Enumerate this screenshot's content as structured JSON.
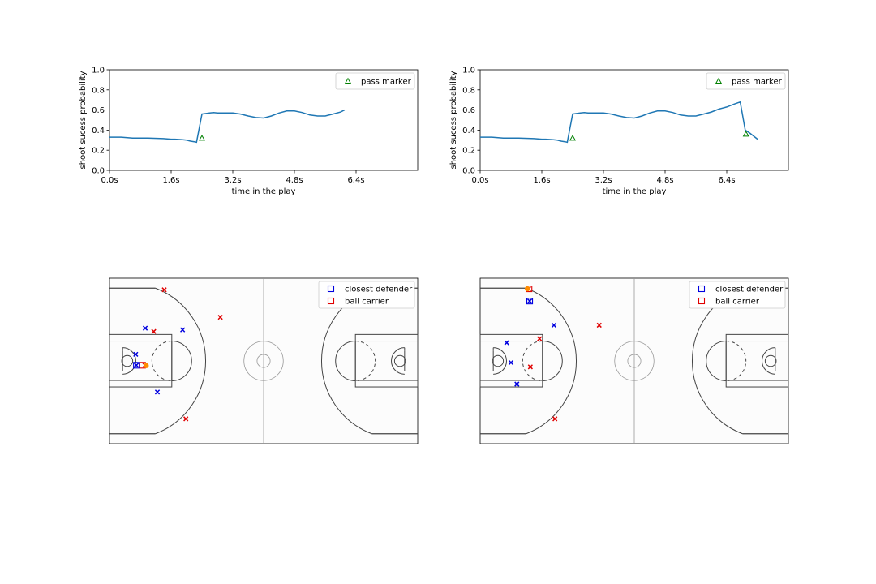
{
  "chart_data": [
    {
      "type": "line",
      "panel": "top-left",
      "xlabel": "time in the play",
      "ylabel": "shoot sucess probability",
      "xlim": [
        0,
        8.0
      ],
      "ylim": [
        0,
        1.0
      ],
      "xticks": [
        0,
        1.6,
        3.2,
        4.8,
        6.4
      ],
      "xtick_labels": [
        "0.0s",
        "1.6s",
        "3.2s",
        "4.8s",
        "6.4s"
      ],
      "yticks": [
        0,
        0.2,
        0.4,
        0.6,
        0.8,
        1.0
      ],
      "ytick_labels": [
        "0.0",
        "0.2",
        "0.4",
        "0.6",
        "0.8",
        "1.0"
      ],
      "line_color": "#1f77b4",
      "x": [
        0,
        0.3,
        0.6,
        0.7,
        1.0,
        1.4,
        1.6,
        1.7,
        1.9,
        2.0,
        2.1,
        2.2,
        2.26,
        2.4,
        2.6,
        2.7,
        2.8,
        3.0,
        3.2,
        3.4,
        3.6,
        3.8,
        4.0,
        4.2,
        4.4,
        4.6,
        4.8,
        5.0,
        5.2,
        5.4,
        5.6,
        5.8,
        6.0,
        6.1
      ],
      "y": [
        0.33,
        0.33,
        0.32,
        0.32,
        0.32,
        0.315,
        0.31,
        0.31,
        0.305,
        0.3,
        0.29,
        0.285,
        0.28,
        0.56,
        0.57,
        0.575,
        0.57,
        0.57,
        0.57,
        0.56,
        0.54,
        0.525,
        0.52,
        0.54,
        0.57,
        0.59,
        0.59,
        0.575,
        0.55,
        0.54,
        0.54,
        0.56,
        0.58,
        0.6
      ],
      "markers": [
        {
          "label": "pass marker",
          "x": 2.4,
          "y": 0.32,
          "color": "#008000",
          "shape": "triangle"
        }
      ],
      "legend": {
        "entries": [
          "pass marker"
        ],
        "placement": "upper right"
      }
    },
    {
      "type": "line",
      "panel": "top-right",
      "xlabel": "time in the play",
      "ylabel": "shoot sucess probability",
      "xlim": [
        0,
        8.0
      ],
      "ylim": [
        0,
        1.0
      ],
      "xticks": [
        0,
        1.6,
        3.2,
        4.8,
        6.4
      ],
      "xtick_labels": [
        "0.0s",
        "1.6s",
        "3.2s",
        "4.8s",
        "6.4s"
      ],
      "yticks": [
        0,
        0.2,
        0.4,
        0.6,
        0.8,
        1.0
      ],
      "ytick_labels": [
        "0.0",
        "0.2",
        "0.4",
        "0.6",
        "0.8",
        "1.0"
      ],
      "line_color": "#1f77b4",
      "x": [
        0,
        0.3,
        0.6,
        0.7,
        1.0,
        1.4,
        1.6,
        1.7,
        1.9,
        2.0,
        2.1,
        2.2,
        2.26,
        2.4,
        2.6,
        2.7,
        2.8,
        3.0,
        3.2,
        3.4,
        3.6,
        3.8,
        4.0,
        4.2,
        4.4,
        4.6,
        4.8,
        5.0,
        5.2,
        5.4,
        5.6,
        5.8,
        6.0,
        6.2,
        6.4,
        6.6,
        6.75,
        6.88,
        7.0,
        7.2
      ],
      "y": [
        0.33,
        0.33,
        0.32,
        0.32,
        0.32,
        0.315,
        0.31,
        0.31,
        0.305,
        0.3,
        0.29,
        0.285,
        0.28,
        0.56,
        0.57,
        0.575,
        0.57,
        0.57,
        0.57,
        0.56,
        0.54,
        0.525,
        0.52,
        0.54,
        0.57,
        0.59,
        0.59,
        0.575,
        0.55,
        0.54,
        0.54,
        0.56,
        0.58,
        0.61,
        0.63,
        0.66,
        0.68,
        0.4,
        0.37,
        0.31
      ],
      "markers": [
        {
          "label": "pass marker",
          "x": 2.4,
          "y": 0.32,
          "color": "#008000",
          "shape": "triangle"
        },
        {
          "label": "pass marker",
          "x": 6.9,
          "y": 0.36,
          "color": "#008000",
          "shape": "triangle"
        }
      ],
      "legend": {
        "entries": [
          "pass marker"
        ],
        "placement": "upper right"
      }
    },
    {
      "type": "scatter",
      "panel": "bottom-left",
      "background": "basketball court",
      "xlim": [
        0,
        94
      ],
      "ylim": [
        0,
        50
      ],
      "series": [
        {
          "name": "offense",
          "color": "#e00000",
          "marker": "x",
          "points": [
            [
              16.7,
              46.5
            ],
            [
              33.8,
              38.2
            ],
            [
              13.5,
              33.9
            ],
            [
              23.3,
              7.5
            ],
            [
              10.8,
              23.7
            ]
          ]
        },
        {
          "name": "defense",
          "color": "#0000e0",
          "marker": "x",
          "points": [
            [
              10.9,
              34.9
            ],
            [
              22.3,
              34.4
            ],
            [
              8.0,
              27.0
            ],
            [
              8.2,
              23.7
            ],
            [
              14.6,
              15.6
            ]
          ]
        },
        {
          "name": "closest defender",
          "color": "#0000e0",
          "marker": "square",
          "points": [
            [
              8.2,
              23.7
            ]
          ]
        },
        {
          "name": "ball carrier",
          "color": "#e00000",
          "marker": "square",
          "points": [
            [
              10.1,
              23.7
            ]
          ]
        },
        {
          "name": "ball",
          "color": "#ff8c00",
          "marker": "dot",
          "points": [
            [
              11.2,
              23.6
            ]
          ]
        }
      ],
      "legend": {
        "entries": [
          "closest defender",
          "ball carrier"
        ],
        "placement": "upper right"
      }
    },
    {
      "type": "scatter",
      "panel": "bottom-right",
      "background": "basketball court",
      "xlim": [
        0,
        94
      ],
      "ylim": [
        0,
        50
      ],
      "series": [
        {
          "name": "offense",
          "color": "#e00000",
          "marker": "x",
          "points": [
            [
              36.3,
              35.8
            ],
            [
              18.1,
              31.7
            ],
            [
              15.3,
              23.2
            ],
            [
              22.8,
              7.5
            ],
            [
              14.8,
              46.8
            ]
          ]
        },
        {
          "name": "defense",
          "color": "#0000e0",
          "marker": "x",
          "points": [
            [
              22.5,
              35.8
            ],
            [
              8.1,
              30.5
            ],
            [
              9.4,
              24.5
            ],
            [
              11.2,
              18.0
            ],
            [
              15.1,
              43.1
            ]
          ]
        },
        {
          "name": "closest defender",
          "color": "#0000e0",
          "marker": "square",
          "points": [
            [
              15.1,
              43.1
            ]
          ]
        },
        {
          "name": "ball carrier",
          "color": "#e00000",
          "marker": "square",
          "points": [
            [
              14.9,
              46.8
            ]
          ]
        },
        {
          "name": "ball",
          "color": "#ff8c00",
          "marker": "dot",
          "points": [
            [
              14.4,
              46.8
            ]
          ]
        }
      ],
      "legend": {
        "entries": [
          "closest defender",
          "ball carrier"
        ],
        "placement": "upper right"
      }
    }
  ]
}
